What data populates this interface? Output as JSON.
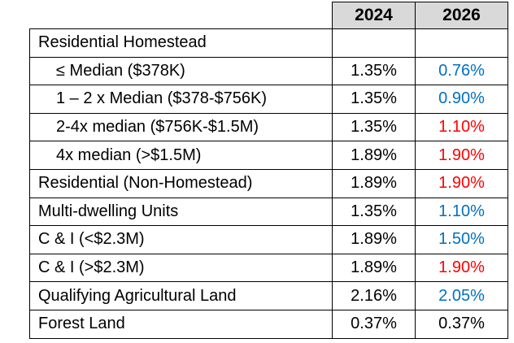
{
  "colors": {
    "decrease_blue": "#0070C0",
    "increase_red": "#FF0000",
    "neutral_black": "#000000",
    "header_fill": "#D9D9D9",
    "border": "#000000"
  },
  "chart_data": {
    "type": "table",
    "title": "",
    "columns": [
      "",
      "2024",
      "2026"
    ],
    "rows": [
      {
        "label": "Residential Homestead",
        "indent": 0,
        "y2024": "",
        "y2026": "",
        "y2026_color": "#000000"
      },
      {
        "label": "≤ Median ($378K)",
        "indent": 1,
        "y2024": "1.35%",
        "y2026": "0.76%",
        "y2026_color": "#0070C0"
      },
      {
        "label": "1 – 2 x Median ($378-$756K)",
        "indent": 1,
        "y2024": "1.35%",
        "y2026": "0.90%",
        "y2026_color": "#0070C0"
      },
      {
        "label": "2-4x median ($756K-$1.5M)",
        "indent": 1,
        "y2024": "1.35%",
        "y2026": "1.10%",
        "y2026_color": "#FF0000"
      },
      {
        "label": "4x median (>$1.5M)",
        "indent": 1,
        "y2024": "1.89%",
        "y2026": "1.90%",
        "y2026_color": "#FF0000"
      },
      {
        "label": "Residential (Non-Homestead)",
        "indent": 0,
        "y2024": "1.89%",
        "y2026": "1.90%",
        "y2026_color": "#FF0000"
      },
      {
        "label": "Multi-dwelling Units",
        "indent": 0,
        "y2024": "1.35%",
        "y2026": "1.10%",
        "y2026_color": "#0070C0"
      },
      {
        "label": "C & I (<$2.3M)",
        "indent": 0,
        "y2024": "1.89%",
        "y2026": "1.50%",
        "y2026_color": "#0070C0"
      },
      {
        "label": "C & I (>$2.3M)",
        "indent": 0,
        "y2024": "1.89%",
        "y2026": "1.90%",
        "y2026_color": "#FF0000"
      },
      {
        "label": "Qualifying Agricultural Land",
        "indent": 0,
        "y2024": "2.16%",
        "y2026": "2.05%",
        "y2026_color": "#0070C0"
      },
      {
        "label": "Forest Land",
        "indent": 0,
        "y2024": "0.37%",
        "y2026": "0.37%",
        "y2026_color": "#000000"
      }
    ]
  }
}
